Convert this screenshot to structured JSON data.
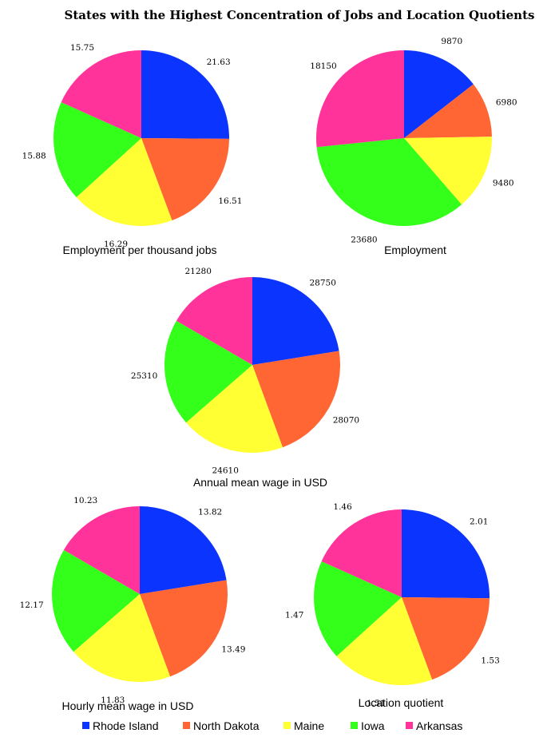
{
  "chart_data": {
    "type": "pie",
    "title": "States with the Highest Concentration of Jobs and Location Quotients",
    "categories": [
      "Rhode Island",
      "North Dakota",
      "Maine",
      "Iowa",
      "Arkansas"
    ],
    "colors": [
      "#0b34ff",
      "#ff6633",
      "#ffff33",
      "#33ff1a",
      "#ff3399"
    ],
    "legend": {
      "placement": "bottom",
      "entries": [
        "Rhode Island",
        "North Dakota",
        "Maine",
        "Iowa",
        "Arkansas"
      ]
    },
    "charts": [
      {
        "title": "Employment per thousand jobs",
        "values": [
          21.63,
          16.51,
          16.29,
          15.88,
          15.75
        ],
        "labels": [
          "21.63",
          "16.51",
          "16.29",
          "15.88",
          "15.75"
        ]
      },
      {
        "title": "Employment",
        "values": [
          9870,
          6980,
          9480,
          23680,
          18150
        ],
        "labels": [
          "9870",
          "6980",
          "9480",
          "23680",
          "18150"
        ]
      },
      {
        "title": "Annual mean wage in USD",
        "values": [
          28750,
          28070,
          24610,
          25310,
          21280
        ],
        "labels": [
          "28750",
          "28070",
          "24610",
          "25310",
          "21280"
        ]
      },
      {
        "title": "Hourly mean wage in USD",
        "values": [
          13.82,
          13.49,
          11.83,
          12.17,
          10.23
        ],
        "labels": [
          "13.82",
          "13.49",
          "11.83",
          "12.17",
          "10.23"
        ]
      },
      {
        "title": "Location quotient",
        "values": [
          2.01,
          1.53,
          1.51,
          1.47,
          1.46
        ],
        "labels": [
          "2.01",
          "1.53",
          "1.51",
          "1.47",
          "1.46"
        ]
      }
    ]
  }
}
